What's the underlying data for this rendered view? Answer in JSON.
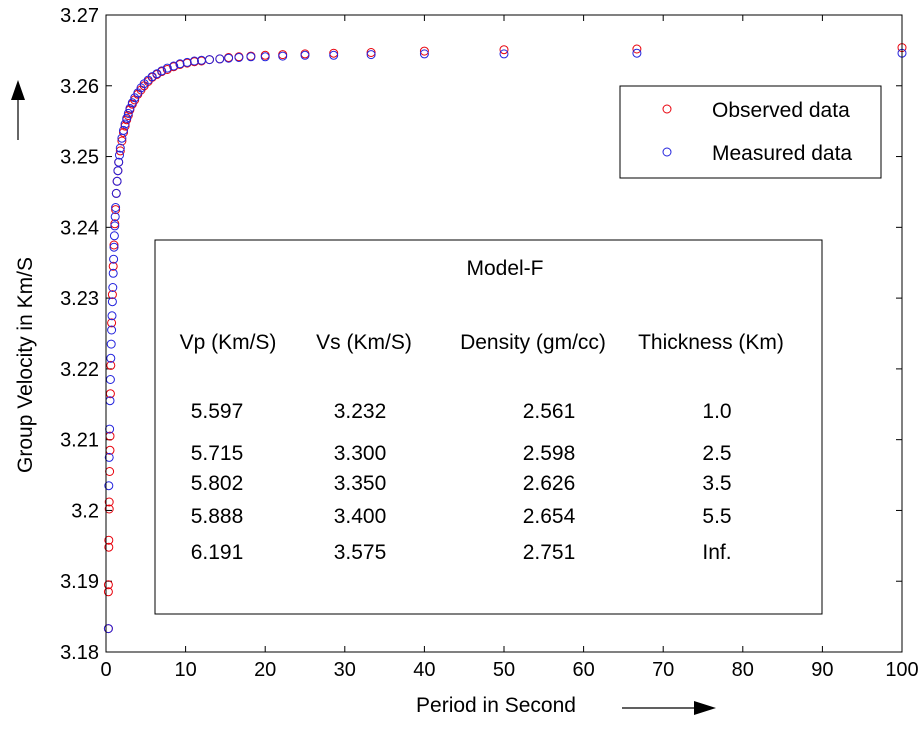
{
  "chart_data": {
    "type": "scatter",
    "xlabel": "Period in Second",
    "ylabel": "Group Velocity in Km/S",
    "xlim": [
      0,
      100
    ],
    "ylim": [
      3.18,
      3.27
    ],
    "x_ticks": [
      0,
      10,
      20,
      30,
      40,
      50,
      60,
      70,
      80,
      90,
      100
    ],
    "y_ticks": [
      3.18,
      3.19,
      3.2,
      3.21,
      3.22,
      3.23,
      3.24,
      3.25,
      3.26,
      3.27
    ],
    "y_tick_labels": [
      "3.18",
      "3.19",
      "3.2",
      "3.21",
      "3.22",
      "3.23",
      "3.24",
      "3.25",
      "3.26",
      "3.27"
    ],
    "grid": false,
    "legend_position": "top-right",
    "series": [
      {
        "name": "Observed data",
        "color": "#e8000b",
        "marker": "open-circle",
        "x": [
          0.3,
          0.3,
          0.3,
          0.35,
          0.35,
          0.4,
          0.4,
          0.45,
          0.5,
          0.5,
          0.55,
          0.6,
          0.7,
          0.8,
          0.9,
          1.0,
          1.1,
          1.2,
          1.3,
          1.4,
          1.5,
          1.6,
          1.8,
          2.0,
          2.2,
          2.4,
          2.6,
          2.8,
          3.0,
          3.3,
          3.6,
          4.0,
          4.4,
          4.8,
          5.3,
          5.8,
          6.4,
          7.0,
          7.7,
          8.5,
          9.3,
          10.2,
          11.1,
          12.0,
          13.0,
          14.3,
          15.4,
          16.7,
          18.2,
          20.0,
          22.2,
          25.0,
          28.6,
          33.3,
          40.0,
          50.0,
          66.7,
          100.0
        ],
        "y": [
          3.1833,
          3.1885,
          3.1895,
          3.1948,
          3.1958,
          3.2002,
          3.2012,
          3.2055,
          3.2085,
          3.2105,
          3.2165,
          3.2205,
          3.2265,
          3.2305,
          3.2345,
          3.2375,
          3.2405,
          3.2425,
          3.2448,
          3.2465,
          3.248,
          3.2492,
          3.2508,
          3.2522,
          3.2534,
          3.2543,
          3.2552,
          3.2558,
          3.2566,
          3.2574,
          3.258,
          3.2588,
          3.2594,
          3.26,
          3.2606,
          3.2612,
          3.2616,
          3.262,
          3.2623,
          3.2627,
          3.263,
          3.2632,
          3.2634,
          3.2635,
          3.2637,
          3.2638,
          3.264,
          3.2641,
          3.2642,
          3.2643,
          3.2644,
          3.2645,
          3.2646,
          3.2647,
          3.2649,
          3.2651,
          3.2652,
          3.2654
        ]
      },
      {
        "name": "Measured data",
        "color": "#2222dd",
        "marker": "open-circle",
        "x": [
          0.3,
          0.35,
          0.4,
          0.45,
          0.5,
          0.55,
          0.6,
          0.65,
          0.7,
          0.75,
          0.8,
          0.85,
          0.9,
          0.95,
          1.0,
          1.05,
          1.1,
          1.15,
          1.2,
          1.3,
          1.4,
          1.5,
          1.6,
          1.7,
          1.8,
          2.0,
          2.2,
          2.4,
          2.6,
          2.8,
          3.0,
          3.3,
          3.6,
          4.0,
          4.4,
          4.8,
          5.3,
          5.8,
          6.4,
          7.0,
          7.7,
          8.5,
          9.3,
          10.2,
          11.1,
          12.0,
          13.0,
          14.3,
          15.4,
          16.7,
          18.2,
          20.0,
          22.2,
          25.0,
          28.6,
          33.3,
          40.0,
          50.0,
          66.7,
          100.0
        ],
        "y": [
          3.1833,
          3.2035,
          3.2075,
          3.2115,
          3.2155,
          3.2185,
          3.2215,
          3.2235,
          3.2255,
          3.2275,
          3.2295,
          3.2315,
          3.2335,
          3.2355,
          3.2372,
          3.2388,
          3.2402,
          3.2415,
          3.2428,
          3.2448,
          3.2465,
          3.248,
          3.2492,
          3.2502,
          3.2512,
          3.2526,
          3.2537,
          3.2546,
          3.2554,
          3.2561,
          3.2568,
          3.2576,
          3.2583,
          3.259,
          3.2597,
          3.2603,
          3.2608,
          3.2613,
          3.2617,
          3.2621,
          3.2625,
          3.2628,
          3.2631,
          3.2633,
          3.2635,
          3.2636,
          3.2637,
          3.2638,
          3.2639,
          3.264,
          3.2641,
          3.2641,
          3.2642,
          3.2643,
          3.2643,
          3.2644,
          3.2645,
          3.2645,
          3.2646,
          3.2646
        ]
      }
    ],
    "annotation_table": {
      "title": "Model-F",
      "headers": [
        "Vp (Km/S)",
        "Vs (Km/S)",
        "Density (gm/cc)",
        "Thickness (Km)"
      ],
      "rows": [
        [
          "5.597",
          "3.232",
          "2.561",
          "1.0"
        ],
        [
          "5.715",
          "3.300",
          "2.598",
          "2.5"
        ],
        [
          "5.802",
          "3.350",
          "2.626",
          "3.5"
        ],
        [
          "5.888",
          "3.400",
          "2.654",
          "5.5"
        ],
        [
          "6.191",
          "3.575",
          "2.751",
          "Inf."
        ]
      ]
    }
  }
}
